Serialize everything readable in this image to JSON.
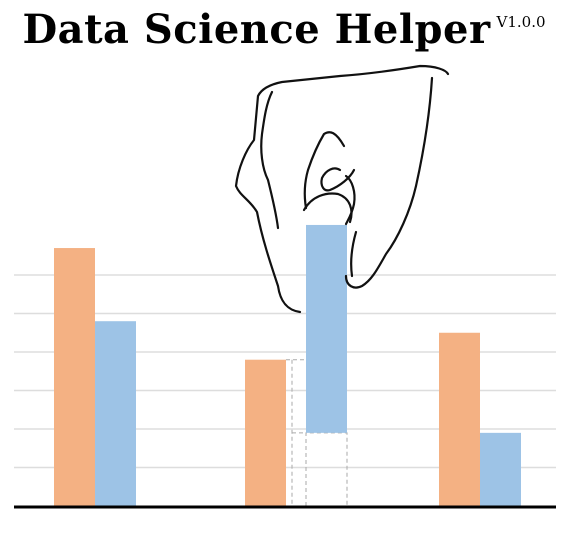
{
  "title": "Data Science Helper",
  "version": "V1.0.0",
  "colors": {
    "orange": "#F4B183",
    "blue": "#9DC3E6",
    "grid": "#DDDDDD",
    "baseline": "#000000",
    "dashed": "#AAAAAA",
    "hand_stroke": "#111111"
  },
  "illustration": {
    "icon": "hand-lifting-bar-icon",
    "bar_groups": [
      {
        "orange": 6.7,
        "blue": 4.8
      },
      {
        "orange": 3.8,
        "blue": 7.3,
        "blue_lifted_from": 1.9
      },
      {
        "orange": 4.5,
        "blue": 1.9
      }
    ],
    "ymax": 9.5
  }
}
